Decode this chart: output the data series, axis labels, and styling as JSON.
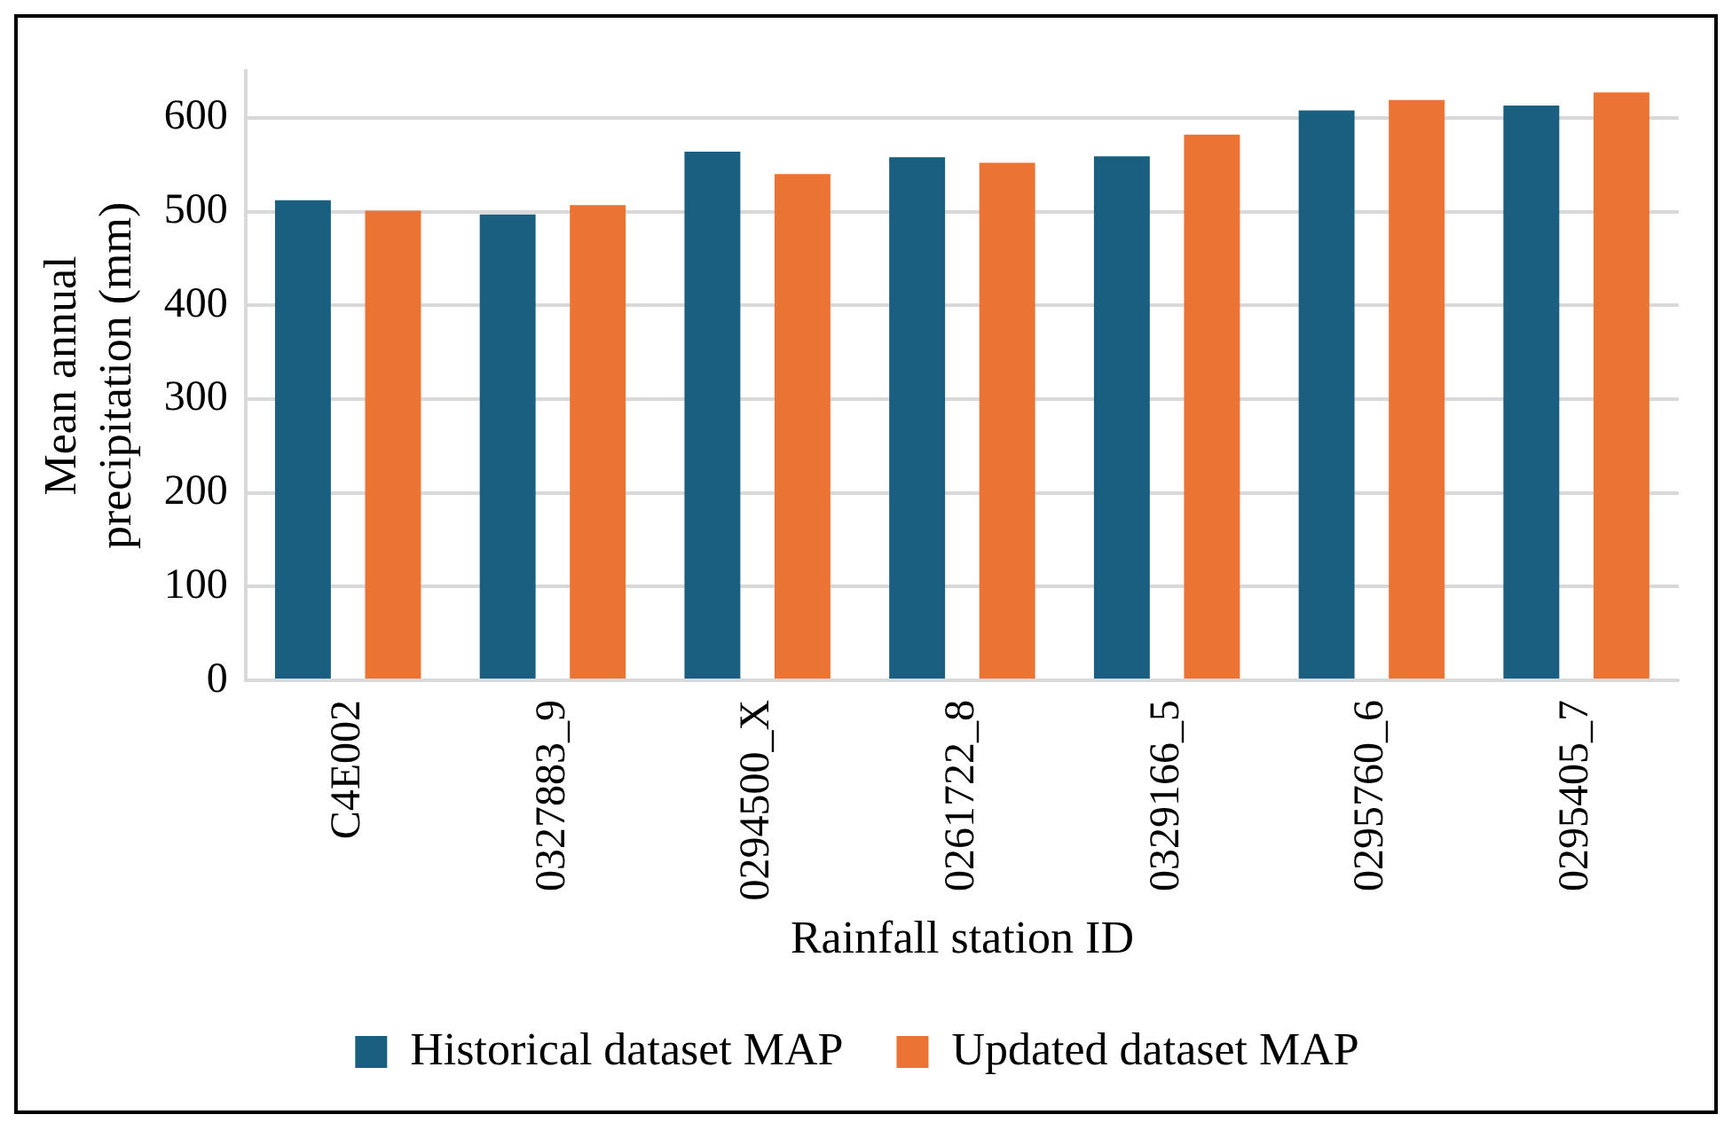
{
  "chart_data": {
    "type": "bar",
    "xlabel": "Rainfall station ID",
    "ylabel": "Mean annual precipitation (mm)",
    "categories": [
      "C4E002",
      "0327883_9",
      "0294500_X",
      "0261722_8",
      "0329166_5",
      "0295760_6",
      "0295405_7"
    ],
    "series": [
      {
        "name": "Historical dataset MAP",
        "color": "#1a5f80",
        "values": [
          512,
          497,
          564,
          558,
          559,
          608,
          613
        ]
      },
      {
        "name": "Updated dataset MAP",
        "color": "#eb7333",
        "values": [
          501,
          507,
          540,
          552,
          582,
          619,
          627
        ]
      }
    ],
    "ylim": [
      0,
      650
    ],
    "yticks": [
      0,
      100,
      200,
      300,
      400,
      500,
      600
    ],
    "grid": "y",
    "legend": "bottom"
  }
}
